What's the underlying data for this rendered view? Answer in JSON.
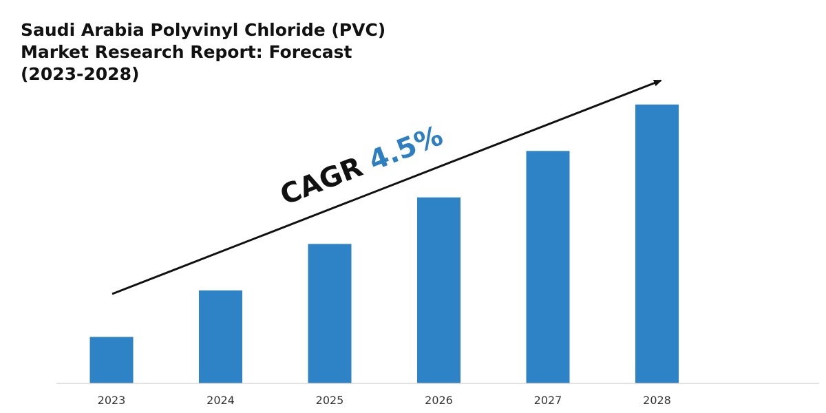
{
  "chart_data": {
    "type": "bar",
    "title_lines": [
      "Saudi Arabia Polyvinyl Chloride (PVC)",
      "Market Research Report: Forecast",
      "(2023-2028)"
    ],
    "categories": [
      "2023",
      "2024",
      "2025",
      "2026",
      "2027",
      "2028"
    ],
    "values": [
      1,
      2,
      3,
      4,
      5,
      6
    ],
    "ylim": [
      0,
      6.1
    ],
    "xlabel": "",
    "ylabel": "",
    "grid": false,
    "annotation": {
      "prefix": "CAGR",
      "value": "4.5%"
    },
    "colors": {
      "bar": "#2e83c6",
      "cagr_value": "#2e7fc1",
      "text": "#111111",
      "axis": "#d9d9d9",
      "arrow": "#111111"
    }
  }
}
